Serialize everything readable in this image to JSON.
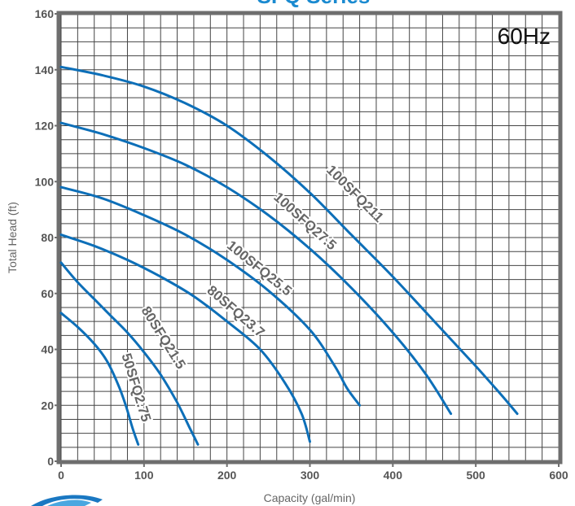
{
  "chart_data": {
    "type": "line",
    "title": "SFQ Series",
    "frequency_label": "60Hz",
    "xlabel": "Capacity (gal/min)",
    "ylabel": "Total Head (ft)",
    "xlim": [
      0,
      600
    ],
    "ylim": [
      0,
      160
    ],
    "x_ticks": [
      0,
      100,
      200,
      300,
      400,
      500,
      600
    ],
    "y_ticks": [
      0,
      20,
      40,
      60,
      80,
      100,
      120,
      140,
      160
    ],
    "grid": true,
    "series": [
      {
        "name": "50SFQ2.75",
        "points": [
          [
            0,
            53
          ],
          [
            20,
            48
          ],
          [
            40,
            42
          ],
          [
            55,
            36
          ],
          [
            68,
            28
          ],
          [
            78,
            20
          ],
          [
            86,
            12
          ],
          [
            93,
            6
          ]
        ]
      },
      {
        "name": "80SFQ21.5",
        "points": [
          [
            0,
            71
          ],
          [
            20,
            64
          ],
          [
            40,
            58
          ],
          [
            60,
            52
          ],
          [
            80,
            46
          ],
          [
            100,
            39
          ],
          [
            120,
            31
          ],
          [
            140,
            21
          ],
          [
            155,
            12
          ],
          [
            165,
            6
          ]
        ]
      },
      {
        "name": "80SFQ23.7",
        "points": [
          [
            0,
            81
          ],
          [
            40,
            77
          ],
          [
            80,
            72
          ],
          [
            120,
            66
          ],
          [
            160,
            59
          ],
          [
            200,
            50
          ],
          [
            240,
            40
          ],
          [
            270,
            28
          ],
          [
            290,
            17
          ],
          [
            300,
            7
          ]
        ]
      },
      {
        "name": "100SFQ25.5",
        "points": [
          [
            0,
            98
          ],
          [
            50,
            94
          ],
          [
            100,
            88
          ],
          [
            150,
            81
          ],
          [
            200,
            72
          ],
          [
            250,
            61
          ],
          [
            300,
            47
          ],
          [
            330,
            34
          ],
          [
            345,
            26
          ],
          [
            360,
            20
          ]
        ]
      },
      {
        "name": "100SFQ27.5",
        "points": [
          [
            0,
            121
          ],
          [
            50,
            117
          ],
          [
            100,
            112
          ],
          [
            150,
            106
          ],
          [
            200,
            98
          ],
          [
            250,
            88
          ],
          [
            300,
            76
          ],
          [
            350,
            62
          ],
          [
            400,
            46
          ],
          [
            440,
            31
          ],
          [
            470,
            17
          ]
        ]
      },
      {
        "name": "100SFQ211",
        "points": [
          [
            0,
            141
          ],
          [
            50,
            138
          ],
          [
            100,
            134
          ],
          [
            150,
            128
          ],
          [
            200,
            120
          ],
          [
            250,
            109
          ],
          [
            300,
            96
          ],
          [
            350,
            81
          ],
          [
            400,
            66
          ],
          [
            450,
            50
          ],
          [
            500,
            34
          ],
          [
            530,
            24
          ],
          [
            550,
            17
          ]
        ]
      }
    ],
    "series_labels": [
      "50SFQ2.75",
      "80SFQ21.5",
      "80SFQ23.7",
      "100SFQ25.5",
      "100SFQ27.5",
      "100SFQ211"
    ],
    "line_color": "#0d6fb8",
    "grid_color": "#444444",
    "frame_color": "#6e6e6e"
  }
}
